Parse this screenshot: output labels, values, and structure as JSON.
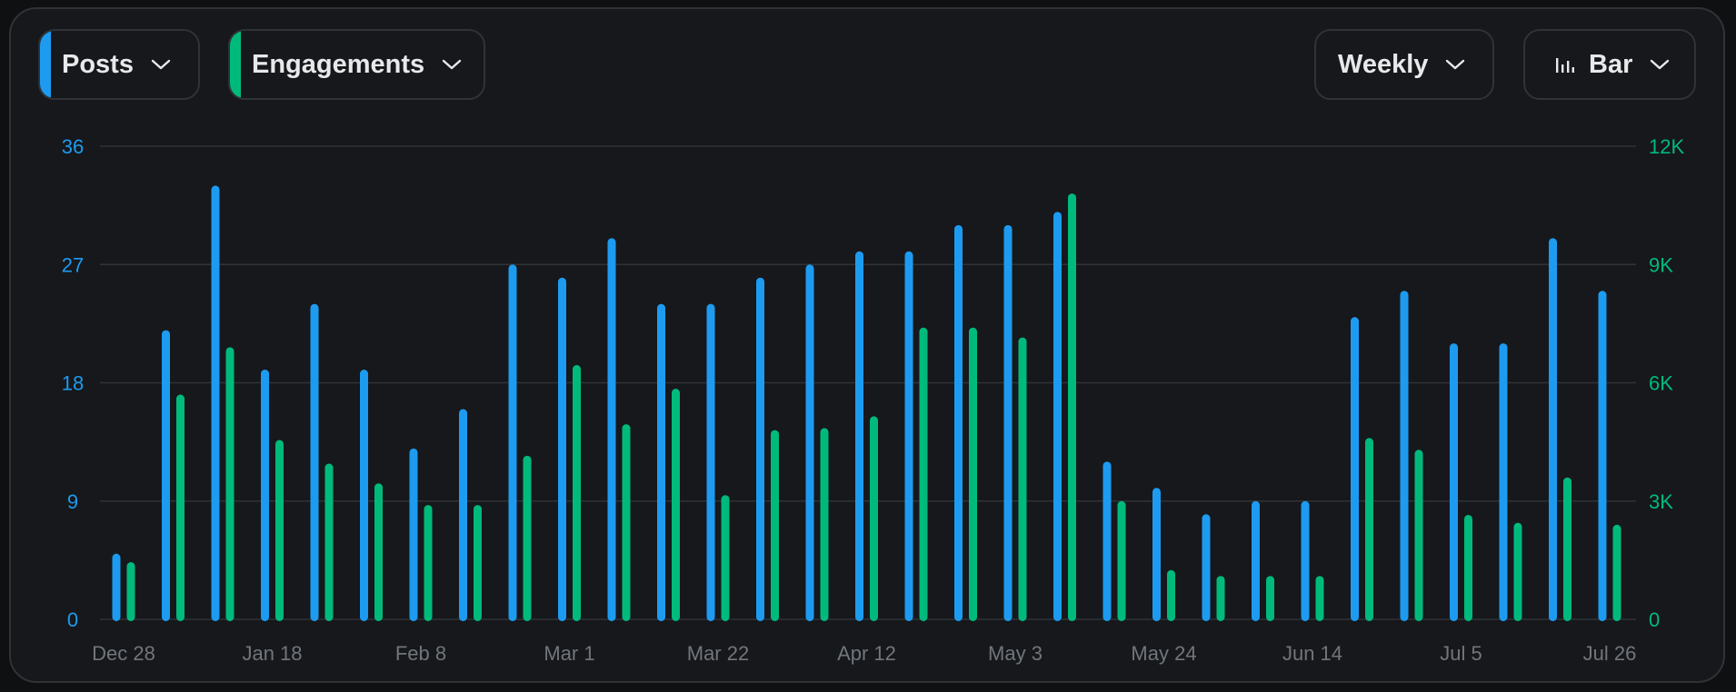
{
  "controls": {
    "metric1": {
      "label": "Posts",
      "color": "#1d9bf0",
      "icon": "chevron-down-icon"
    },
    "metric2": {
      "label": "Engagements",
      "color": "#00ba7c",
      "icon": "chevron-down-icon"
    },
    "interval": {
      "label": "Weekly",
      "icon": "chevron-down-icon"
    },
    "chart_type": {
      "label": "Bar",
      "icon": "bar-chart-icon"
    }
  },
  "colors": {
    "posts": "#1d9bf0",
    "engagements": "#00ba7c",
    "grid": "#2f3336",
    "background": "#16181c"
  },
  "chart_data": {
    "type": "bar",
    "x_tick_labels": [
      "Dec 28",
      "Jan 18",
      "Feb 8",
      "Mar 1",
      "Mar 22",
      "Apr 12",
      "May 3",
      "May 24",
      "Jun 14",
      "Jul 5",
      "Jul 26"
    ],
    "y_left": {
      "ticks": [
        "0",
        "9",
        "18",
        "27",
        "36"
      ],
      "ylim": [
        0,
        36
      ]
    },
    "y_right": {
      "ticks": [
        "0",
        "3K",
        "6K",
        "9K",
        "12K"
      ],
      "ylim": [
        0,
        12000
      ]
    },
    "grid": true,
    "series": [
      {
        "name": "Posts",
        "axis": "left",
        "color": "#1d9bf0",
        "values": [
          5,
          22,
          33,
          19,
          24,
          19,
          13,
          16,
          27,
          26,
          29,
          24,
          24,
          26,
          27,
          28,
          28,
          30,
          30,
          31,
          12,
          10,
          8,
          9,
          9,
          23,
          25,
          21,
          21,
          29,
          25
        ]
      },
      {
        "name": "Engagements",
        "axis": "right",
        "color": "#00ba7c",
        "values": [
          1450,
          5700,
          6900,
          4550,
          3950,
          3450,
          2900,
          2900,
          4150,
          6450,
          4950,
          5850,
          3150,
          4800,
          4850,
          5150,
          7400,
          7400,
          7150,
          10800,
          3000,
          1250,
          1100,
          1100,
          1100,
          4600,
          4300,
          2650,
          2450,
          3600,
          2400
        ]
      }
    ]
  }
}
